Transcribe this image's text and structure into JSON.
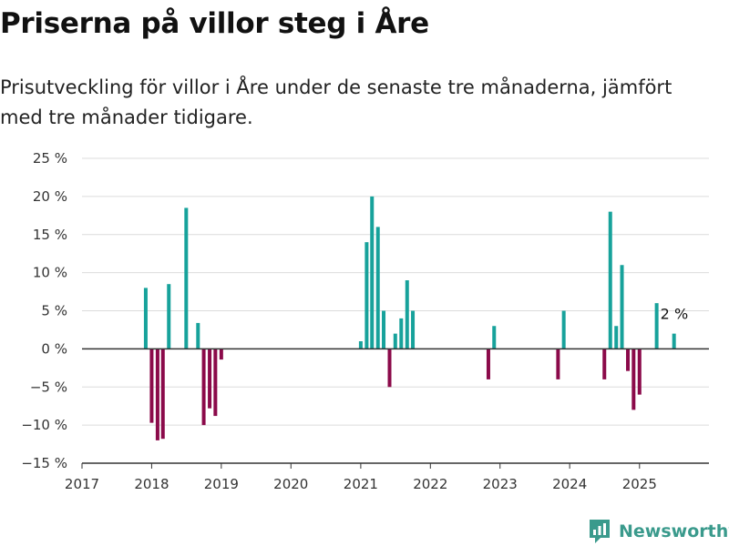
{
  "title": "Priserna på villor steg i Åre",
  "subtitle": "Prisutveckling för villor i Åre under de senaste tre månaderna, jämfört med tre månader tidigare.",
  "brand": {
    "name": "Newsworthy",
    "icon": "newsworthy-logo-icon",
    "color": "#3a9a8c"
  },
  "colors": {
    "positive": "#17a29b",
    "negative": "#8b0a4a",
    "grid": "#dcdcdc",
    "axis": "#333333"
  },
  "chart_data": {
    "type": "bar",
    "title": "",
    "xlabel": "",
    "ylabel": "",
    "xlim": [
      "2017-01-01",
      "2025-12-31"
    ],
    "ylim": [
      -15,
      25
    ],
    "x_ticks": [
      "2017",
      "2018",
      "2019",
      "2020",
      "2021",
      "2022",
      "2023",
      "2024",
      "2025"
    ],
    "y_ticks": [
      {
        "value": -15,
        "label": "−15 %"
      },
      {
        "value": -10,
        "label": "−10 %"
      },
      {
        "value": -5,
        "label": "−5 %"
      },
      {
        "value": 0,
        "label": "0 %"
      },
      {
        "value": 5,
        "label": "5 %"
      },
      {
        "value": 10,
        "label": "10 %"
      },
      {
        "value": 15,
        "label": "15 %"
      },
      {
        "value": 20,
        "label": "20 %"
      },
      {
        "value": 25,
        "label": "25 %"
      }
    ],
    "grid": true,
    "series": [
      {
        "points": [
          {
            "x": "2017-12-01",
            "y": 8
          },
          {
            "x": "2018-01-01",
            "y": -9.7
          },
          {
            "x": "2018-02-01",
            "y": -12
          },
          {
            "x": "2018-03-01",
            "y": -11.8
          },
          {
            "x": "2018-04-01",
            "y": 8.5
          },
          {
            "x": "2018-07-01",
            "y": 18.5
          },
          {
            "x": "2018-09-01",
            "y": 3.4
          },
          {
            "x": "2018-10-01",
            "y": -10
          },
          {
            "x": "2018-11-01",
            "y": -7.8
          },
          {
            "x": "2018-12-01",
            "y": -8.8
          },
          {
            "x": "2019-01-01",
            "y": -1.4
          },
          {
            "x": "2021-01-01",
            "y": 1
          },
          {
            "x": "2021-02-01",
            "y": 14
          },
          {
            "x": "2021-03-01",
            "y": 20
          },
          {
            "x": "2021-04-01",
            "y": 16
          },
          {
            "x": "2021-05-01",
            "y": 5
          },
          {
            "x": "2021-06-01",
            "y": -5
          },
          {
            "x": "2021-07-01",
            "y": 2
          },
          {
            "x": "2021-08-01",
            "y": 4
          },
          {
            "x": "2021-09-01",
            "y": 9
          },
          {
            "x": "2021-10-01",
            "y": 5
          },
          {
            "x": "2022-11-01",
            "y": -4
          },
          {
            "x": "2022-12-01",
            "y": 3
          },
          {
            "x": "2023-11-01",
            "y": -4
          },
          {
            "x": "2023-12-01",
            "y": 5
          },
          {
            "x": "2024-07-01",
            "y": -4
          },
          {
            "x": "2024-08-01",
            "y": 18
          },
          {
            "x": "2024-09-01",
            "y": 3
          },
          {
            "x": "2024-10-01",
            "y": 11
          },
          {
            "x": "2024-11-01",
            "y": -2.9
          },
          {
            "x": "2024-12-01",
            "y": -8
          },
          {
            "x": "2025-01-01",
            "y": -6
          },
          {
            "x": "2025-04-01",
            "y": 6
          },
          {
            "x": "2025-07-01",
            "y": 2
          }
        ]
      }
    ],
    "annotations": [
      {
        "x": "2025-07-01",
        "y": 2,
        "text": "2 %"
      }
    ]
  }
}
